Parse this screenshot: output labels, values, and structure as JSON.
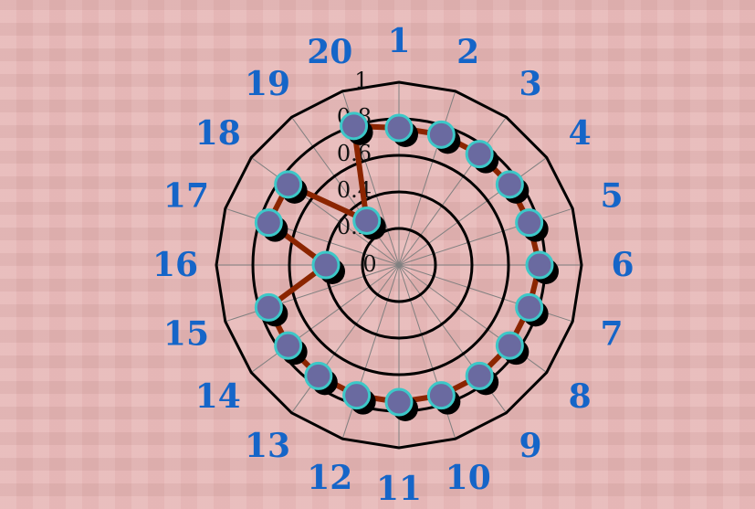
{
  "chart_data": {
    "type": "radar",
    "title": "",
    "categories": [
      "1",
      "2",
      "3",
      "4",
      "5",
      "6",
      "7",
      "8",
      "9",
      "10",
      "11",
      "12",
      "13",
      "14",
      "15",
      "16",
      "17",
      "18",
      "19",
      "20"
    ],
    "series": [
      {
        "values": [
          0.75,
          0.75,
          0.75,
          0.75,
          0.75,
          0.77,
          0.75,
          0.75,
          0.75,
          0.75,
          0.75,
          0.75,
          0.75,
          0.75,
          0.75,
          0.4,
          0.75,
          0.75,
          0.3,
          0.8
        ],
        "line_color": "#8b2500",
        "marker_fill": "#6a6aa0",
        "marker_stroke": "#3cc8c8"
      }
    ],
    "r_ticks": [
      "0",
      "0.2",
      "0.4",
      "0.6",
      "0.8",
      "1"
    ],
    "r_range": [
      0,
      1
    ],
    "grid": true,
    "label_color": "#1565c8"
  }
}
